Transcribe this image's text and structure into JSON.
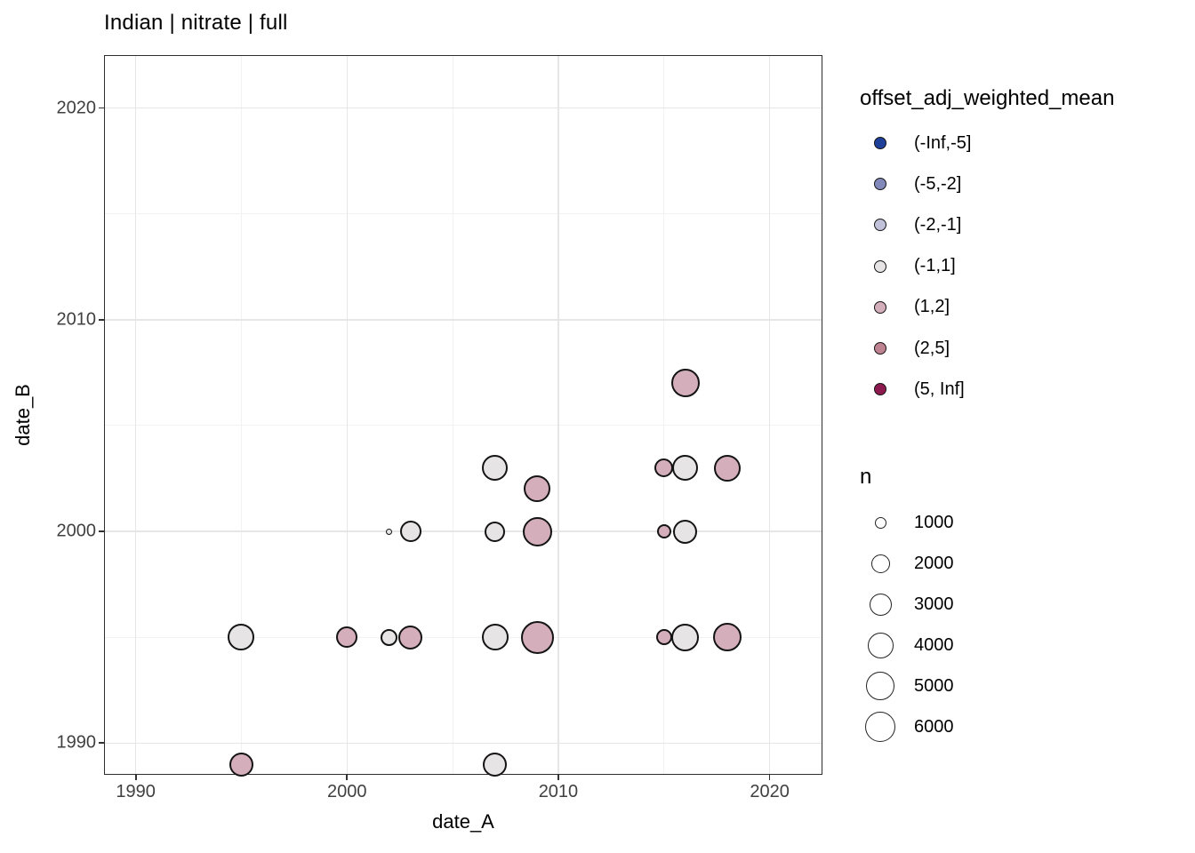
{
  "chart_data": {
    "type": "scatter",
    "title": "Indian | nitrate | full",
    "xlabel": "date_A",
    "ylabel": "date_B",
    "xlim": [
      1988.5,
      2022.5
    ],
    "ylim": [
      1988.5,
      2022.5
    ],
    "x_ticks": [
      1990,
      2000,
      2010,
      2020
    ],
    "y_ticks": [
      1990,
      2000,
      2010,
      2020
    ],
    "x_minor_ticks": [
      1995,
      2005,
      2015
    ],
    "y_minor_ticks": [
      1995,
      2005,
      2015
    ],
    "grid": "major+minor",
    "legend_position": "right",
    "panel_background": "#ffffff",
    "grid_major_color": "#e6e6e6",
    "grid_minor_color": "#f2f2f2",
    "point_stroke_color": "#141414",
    "color_legend": {
      "title": "offset_adj_weighted_mean",
      "bins": [
        {
          "label": "(-Inf,-5]",
          "color": "#1f4099"
        },
        {
          "label": "(-5,-2]",
          "color": "#8289ba"
        },
        {
          "label": "(-2,-1]",
          "color": "#bfc2d9"
        },
        {
          "label": "(-1,1]",
          "color": "#e6e4e4"
        },
        {
          "label": "(1,2]",
          "color": "#d4aebb"
        },
        {
          "label": "(2,5]",
          "color": "#bf8290"
        },
        {
          "label": "(5, Inf]",
          "color": "#8c1a4e"
        }
      ]
    },
    "size_legend": {
      "title": "n",
      "entries": [
        {
          "n": 1000,
          "d": 13
        },
        {
          "n": 2000,
          "d": 21
        },
        {
          "n": 3000,
          "d": 25
        },
        {
          "n": 4000,
          "d": 29
        },
        {
          "n": 5000,
          "d": 32
        },
        {
          "n": 6000,
          "d": 34
        }
      ]
    },
    "points": [
      {
        "x": 1995,
        "y": 1989,
        "bin": "(1,2]",
        "n": 3300,
        "d": 27
      },
      {
        "x": 1995,
        "y": 1995,
        "bin": "(-1,1]",
        "n": 4400,
        "d": 30
      },
      {
        "x": 2000,
        "y": 1995,
        "bin": "(1,2]",
        "n": 2700,
        "d": 24
      },
      {
        "x": 2002,
        "y": 1995,
        "bin": "(-1,1]",
        "n": 1700,
        "d": 19
      },
      {
        "x": 2002,
        "y": 2000,
        "bin": "(-1,1]",
        "n": 250,
        "d": 7
      },
      {
        "x": 2003,
        "y": 1995,
        "bin": "(1,2]",
        "n": 3300,
        "d": 27
      },
      {
        "x": 2003,
        "y": 2000,
        "bin": "(-1,1]",
        "n": 2700,
        "d": 24
      },
      {
        "x": 2007,
        "y": 1989,
        "bin": "(-1,1]",
        "n": 3300,
        "d": 27
      },
      {
        "x": 2007,
        "y": 1995,
        "bin": "(-1,1]",
        "n": 4400,
        "d": 30
      },
      {
        "x": 2007,
        "y": 2000,
        "bin": "(-1,1]",
        "n": 2500,
        "d": 23
      },
      {
        "x": 2007,
        "y": 2003,
        "bin": "(-1,1]",
        "n": 4100,
        "d": 29
      },
      {
        "x": 2009,
        "y": 1995,
        "bin": "(1,2]",
        "n": 7000,
        "d": 37
      },
      {
        "x": 2009,
        "y": 2000,
        "bin": "(1,2]",
        "n": 5300,
        "d": 33
      },
      {
        "x": 2009,
        "y": 2002,
        "bin": "(1,2]",
        "n": 4400,
        "d": 30
      },
      {
        "x": 2015,
        "y": 1995,
        "bin": "(1,2]",
        "n": 1500,
        "d": 18
      },
      {
        "x": 2015,
        "y": 2000,
        "bin": "(1,2]",
        "n": 1200,
        "d": 16
      },
      {
        "x": 2015,
        "y": 2003,
        "bin": "(1,2]",
        "n": 2000,
        "d": 21
      },
      {
        "x": 2016,
        "y": 1995,
        "bin": "(-1,1]",
        "n": 4700,
        "d": 31
      },
      {
        "x": 2016,
        "y": 2000,
        "bin": "(-1,1]",
        "n": 3300,
        "d": 27
      },
      {
        "x": 2016,
        "y": 2003,
        "bin": "(-1,1]",
        "n": 4100,
        "d": 29
      },
      {
        "x": 2016,
        "y": 2007,
        "bin": "(1,2]",
        "n": 5000,
        "d": 32
      },
      {
        "x": 2018,
        "y": 1995,
        "bin": "(1,2]",
        "n": 5000,
        "d": 32
      },
      {
        "x": 2018,
        "y": 2003,
        "bin": "(1,2]",
        "n": 4400,
        "d": 30
      }
    ]
  }
}
